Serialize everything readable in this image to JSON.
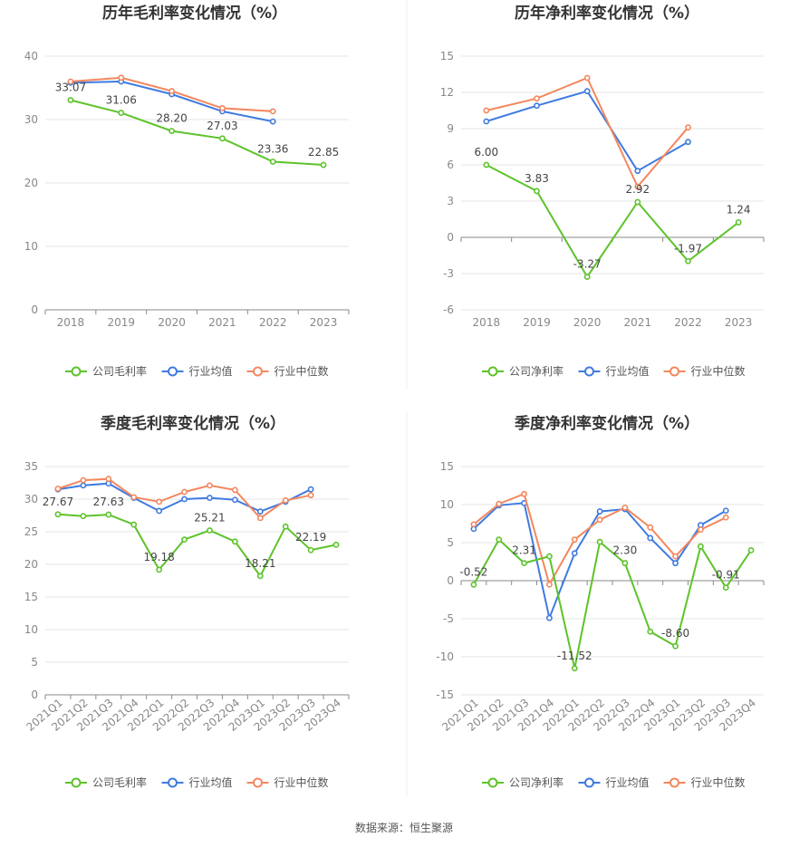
{
  "source": "数据来源：恒生聚源",
  "colors": {
    "company": "#5dc32a",
    "industry_avg": "#3f7be0",
    "industry_median": "#f4875e"
  },
  "chart_data": [
    {
      "type": "line",
      "title": "历年毛利率变化情况（%）",
      "categories": [
        "2018",
        "2019",
        "2020",
        "2021",
        "2022",
        "2023"
      ],
      "ylim": [
        0,
        40
      ],
      "yticks": [
        "0",
        "10",
        "20",
        "30",
        "40"
      ],
      "rotate_x": false,
      "series": [
        {
          "name": "公司毛利率",
          "key": "company",
          "values": [
            33.07,
            31.06,
            28.2,
            27.03,
            23.36,
            22.85
          ],
          "labels": [
            "33.07",
            "31.06",
            "28.20",
            "27.03",
            "23.36",
            "22.85"
          ]
        },
        {
          "name": "行业均值",
          "key": "industry_avg",
          "values": [
            35.8,
            36.0,
            34.0,
            31.3,
            29.7,
            null
          ]
        },
        {
          "name": "行业中位数",
          "key": "industry_median",
          "values": [
            36.0,
            36.6,
            34.5,
            31.8,
            31.3,
            null
          ]
        }
      ]
    },
    {
      "type": "line",
      "title": "历年净利率变化情况（%）",
      "categories": [
        "2018",
        "2019",
        "2020",
        "2021",
        "2022",
        "2023"
      ],
      "ylim": [
        -6,
        15
      ],
      "yticks": [
        "-6",
        "-3",
        "0",
        "3",
        "6",
        "9",
        "12",
        "15"
      ],
      "rotate_x": false,
      "series": [
        {
          "name": "公司净利率",
          "key": "company",
          "values": [
            6.0,
            3.83,
            -3.27,
            2.92,
            -1.97,
            1.24
          ],
          "labels": [
            "6.00",
            "3.83",
            "-3.27",
            "2.92",
            "-1.97",
            "1.24"
          ]
        },
        {
          "name": "行业均值",
          "key": "industry_avg",
          "values": [
            9.6,
            10.9,
            12.1,
            5.5,
            7.9,
            null
          ]
        },
        {
          "name": "行业中位数",
          "key": "industry_median",
          "values": [
            10.5,
            11.5,
            13.2,
            4.2,
            9.1,
            null
          ]
        }
      ]
    },
    {
      "type": "line",
      "title": "季度毛利率变化情况（%）",
      "categories": [
        "2021Q1",
        "2021Q2",
        "2021Q3",
        "2021Q4",
        "2022Q1",
        "2022Q2",
        "2022Q3",
        "2022Q4",
        "2023Q1",
        "2023Q2",
        "2023Q3",
        "2023Q4"
      ],
      "ylim": [
        0,
        35
      ],
      "yticks": [
        "0",
        "5",
        "10",
        "15",
        "20",
        "25",
        "30",
        "35"
      ],
      "rotate_x": true,
      "series": [
        {
          "name": "公司毛利率",
          "key": "company",
          "values": [
            27.67,
            27.4,
            27.63,
            26.1,
            19.18,
            23.8,
            25.21,
            23.5,
            18.21,
            25.8,
            22.19,
            23.0
          ],
          "labels": [
            "27.67",
            "",
            "27.63",
            "",
            "19.18",
            "",
            "25.21",
            "",
            "18.21",
            "",
            "22.19",
            ""
          ]
        },
        {
          "name": "行业均值",
          "key": "industry_avg",
          "values": [
            31.5,
            32.1,
            32.4,
            30.2,
            28.2,
            30.0,
            30.2,
            29.9,
            28.1,
            29.6,
            31.5,
            null
          ]
        },
        {
          "name": "行业中位数",
          "key": "industry_median",
          "values": [
            31.6,
            32.9,
            33.1,
            30.3,
            29.6,
            31.1,
            32.1,
            31.4,
            27.1,
            29.8,
            30.6,
            null
          ]
        }
      ]
    },
    {
      "type": "line",
      "title": "季度净利率变化情况（%）",
      "categories": [
        "2021Q1",
        "2021Q2",
        "2021Q3",
        "2021Q4",
        "2022Q1",
        "2022Q2",
        "2022Q3",
        "2022Q4",
        "2023Q1",
        "2023Q2",
        "2023Q3",
        "2023Q4"
      ],
      "ylim": [
        -15,
        15
      ],
      "yticks": [
        "-15",
        "-10",
        "-5",
        "0",
        "5",
        "10",
        "15"
      ],
      "rotate_x": true,
      "series": [
        {
          "name": "公司净利率",
          "key": "company",
          "values": [
            -0.52,
            5.4,
            2.31,
            3.2,
            -11.52,
            5.1,
            2.3,
            -6.7,
            -8.6,
            4.5,
            -0.91,
            4.0
          ],
          "labels": [
            "-0.52",
            "",
            "2.31",
            "",
            "-11.52",
            "",
            "2.30",
            "",
            "-8.60",
            "",
            "-0.91",
            ""
          ]
        },
        {
          "name": "行业均值",
          "key": "industry_avg",
          "values": [
            6.8,
            9.9,
            10.2,
            -4.9,
            3.6,
            9.1,
            9.4,
            5.6,
            2.3,
            7.3,
            9.2,
            null
          ]
        },
        {
          "name": "行业中位数",
          "key": "industry_median",
          "values": [
            7.4,
            10.1,
            11.4,
            -0.5,
            5.4,
            8.0,
            9.6,
            7.0,
            3.2,
            6.7,
            8.3,
            null
          ]
        }
      ]
    }
  ]
}
